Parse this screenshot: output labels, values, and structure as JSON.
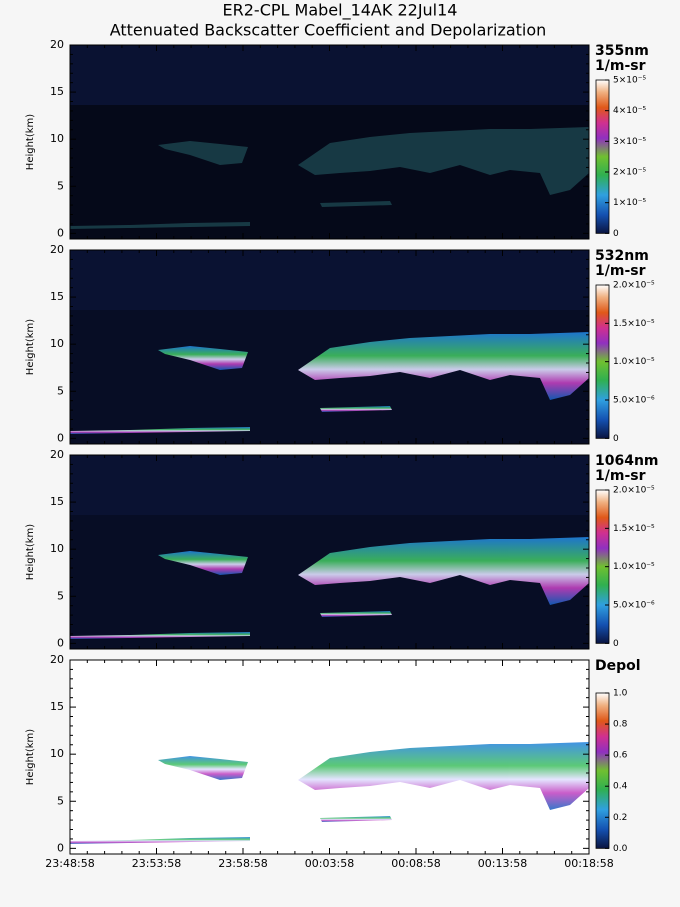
{
  "figure": {
    "title": "ER2-CPL Mabel_14AK 22Jul14",
    "subtitle": "Attenuated Backscatter Coefficient and Depolarization"
  },
  "chart_data": [
    {
      "type": "curtain",
      "label": "355nm",
      "units": "1/m-sr",
      "ylabel": "Height(km)",
      "ylim": [
        -0.6,
        20
      ],
      "yticks": [
        0,
        5,
        10,
        15,
        20
      ],
      "clim": [
        0,
        5e-05
      ],
      "cticks": [
        0,
        {
          "value": 1e-05,
          "label": "1×10⁻⁵"
        },
        {
          "value": 2e-05,
          "label": "2×10⁻⁵"
        },
        {
          "value": 3e-05,
          "label": "3×10⁻⁵"
        },
        {
          "value": 4e-05,
          "label": "4×10⁻⁵"
        },
        {
          "value": 5e-05,
          "label": "5×10⁻⁵"
        }
      ]
    },
    {
      "type": "curtain",
      "label": "532nm",
      "units": "1/m-sr",
      "ylabel": "Height(km)",
      "ylim": [
        -0.6,
        20
      ],
      "yticks": [
        0,
        5,
        10,
        15,
        20
      ],
      "clim": [
        0,
        2e-05
      ],
      "cticks": [
        0,
        {
          "value": 5e-06,
          "label": "5.0×10⁻⁶"
        },
        {
          "value": 1e-05,
          "label": "1.0×10⁻⁵"
        },
        {
          "value": 1.5e-05,
          "label": "1.5×10⁻⁵"
        },
        {
          "value": 2e-05,
          "label": "2.0×10⁻⁵"
        }
      ]
    },
    {
      "type": "curtain",
      "label": "1064nm",
      "units": "1/m-sr",
      "ylabel": "Height(km)",
      "ylim": [
        -0.6,
        20
      ],
      "yticks": [
        0,
        5,
        10,
        15,
        20
      ],
      "clim": [
        0,
        2e-05
      ],
      "cticks": [
        0,
        {
          "value": 5e-06,
          "label": "5.0×10⁻⁶"
        },
        {
          "value": 1e-05,
          "label": "1.0×10⁻⁵"
        },
        {
          "value": 1.5e-05,
          "label": "1.5×10⁻⁵"
        },
        {
          "value": 2e-05,
          "label": "2.0×10⁻⁵"
        }
      ]
    },
    {
      "type": "depol",
      "label": "Depol",
      "ylabel": "Height(km)",
      "ylim": [
        -0.6,
        20
      ],
      "yticks": [
        0,
        5,
        10,
        15,
        20
      ],
      "clim": [
        0,
        1
      ],
      "cticks": [
        {
          "value": 0,
          "label": "0.0"
        },
        0.2,
        0.4,
        0.6,
        0.8,
        {
          "value": 1,
          "label": "1.0"
        }
      ],
      "xticks": [
        "23:48:58",
        "23:53:58",
        "23:58:58",
        "00:03:58",
        "00:08:58",
        "00:13:58",
        "00:18:58"
      ]
    }
  ]
}
